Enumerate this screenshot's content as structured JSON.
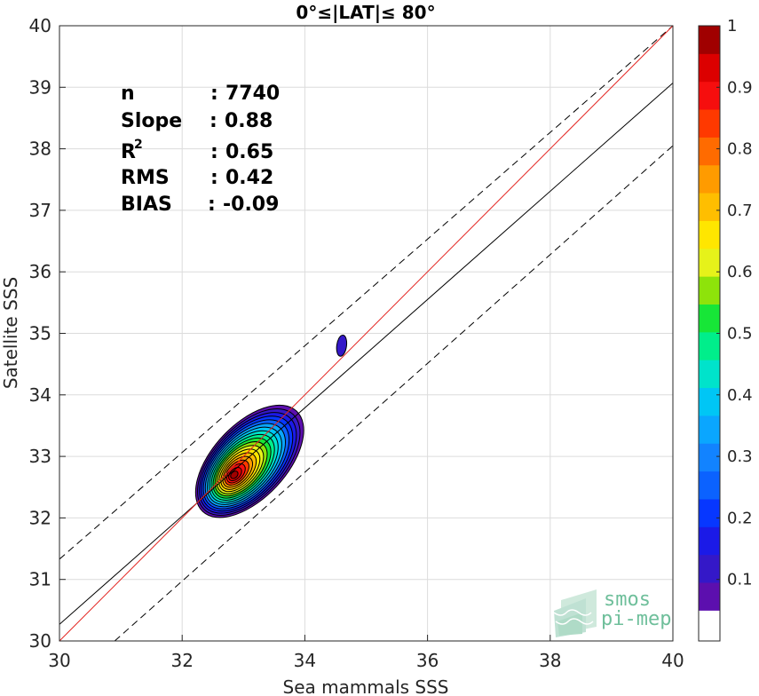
{
  "chart_data": {
    "type": "contour",
    "title": "0°≤|LAT|≤ 80°",
    "xlabel": "Sea mammals SSS",
    "ylabel": "Satellite SSS",
    "xlim": [
      30,
      40
    ],
    "ylim": [
      30,
      40
    ],
    "xticks": [
      "30",
      "32",
      "34",
      "36",
      "38",
      "40"
    ],
    "yticks": [
      "30",
      "31",
      "32",
      "33",
      "34",
      "35",
      "36",
      "37",
      "38",
      "39",
      "40"
    ],
    "grid": true,
    "stats": [
      {
        "label": "n",
        "sep": ":",
        "value": "7740"
      },
      {
        "label": "Slope",
        "sep": ":",
        "value": "0.88"
      },
      {
        "label": "R",
        "sup": "2",
        "sep": ":",
        "value": "0.65"
      },
      {
        "label": "RMS",
        "sep": ":",
        "value": "0.42"
      },
      {
        "label": "BIAS",
        "sep": ":",
        "value": "-0.09"
      }
    ],
    "lines": {
      "one_to_one": {
        "color": "#e3231f",
        "points": [
          [
            30,
            30
          ],
          [
            40,
            40
          ]
        ]
      },
      "fit": {
        "color": "#000000",
        "points": [
          [
            30,
            30.27
          ],
          [
            40,
            39.07
          ]
        ]
      },
      "upper_bound": {
        "color": "#000000",
        "dash": true,
        "points": [
          [
            30,
            31.33
          ],
          [
            40,
            40
          ]
        ]
      },
      "lower_bound": {
        "color": "#000000",
        "dash": true,
        "points": [
          [
            30.9,
            30
          ],
          [
            40,
            38.05
          ]
        ]
      }
    },
    "density": {
      "levels": [
        0.05,
        0.1,
        0.15,
        0.2,
        0.25,
        0.3,
        0.35,
        0.4,
        0.45,
        0.5,
        0.55,
        0.6,
        0.65,
        0.7,
        0.75,
        0.8,
        0.85,
        0.9,
        0.95
      ],
      "main_peak": {
        "x": 32.85,
        "y": 32.7
      },
      "secondary_blob": {
        "x": 34.6,
        "y": 34.8,
        "level": 0.1
      }
    },
    "colorbar": {
      "ticks": [
        "0.1",
        "0.2",
        "0.3",
        "0.4",
        "0.5",
        "0.6",
        "0.7",
        "0.8",
        "0.9",
        "1"
      ],
      "range": [
        0,
        1
      ],
      "colors": [
        "#ffffff",
        "#5c0fae",
        "#3418c8",
        "#1b1ae7",
        "#0737ff",
        "#0b62ff",
        "#1283ff",
        "#0aa6ff",
        "#00c6f5",
        "#00e3cb",
        "#00ee8b",
        "#17e637",
        "#8ee30a",
        "#e6f21a",
        "#ffe600",
        "#ffbe00",
        "#ff9b00",
        "#ff6b00",
        "#ff3900",
        "#f60e0e",
        "#dc0000",
        "#a00000"
      ]
    },
    "watermark": [
      "smos",
      "pi-mep"
    ]
  }
}
